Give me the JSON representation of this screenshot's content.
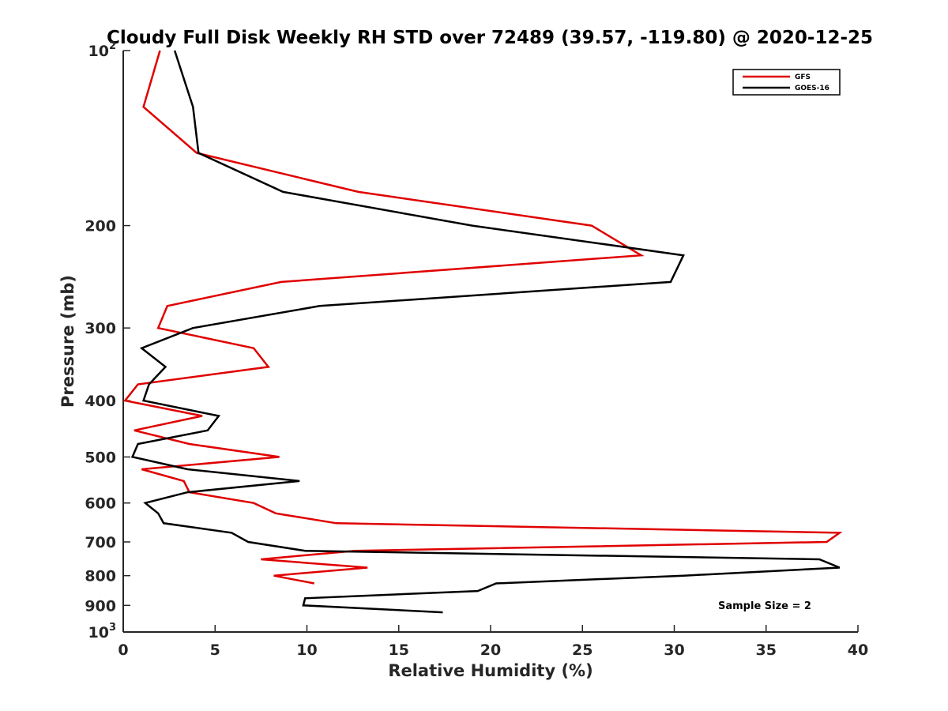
{
  "chart_data": {
    "type": "line",
    "title": "Cloudy Full Disk Weekly RH STD over 72489 (39.57, -119.80) @ 2020-12-25",
    "xlabel": "Relative Humidity (%)",
    "ylabel": "Pressure (mb)",
    "xlim": [
      0,
      40
    ],
    "ylim": [
      100,
      1000
    ],
    "y_scale": "log",
    "y_reversed": true,
    "x_ticks": [
      "0",
      "5",
      "10",
      "15",
      "20",
      "25",
      "30",
      "35",
      "40"
    ],
    "y_ticks": [
      {
        "value": 100,
        "base": "10",
        "sup": "2"
      },
      {
        "value": 200,
        "label": "200"
      },
      {
        "value": 300,
        "label": "300"
      },
      {
        "value": 400,
        "label": "400"
      },
      {
        "value": 500,
        "label": "500"
      },
      {
        "value": 600,
        "label": "600"
      },
      {
        "value": 700,
        "label": "700"
      },
      {
        "value": 800,
        "label": "800"
      },
      {
        "value": 900,
        "label": "900"
      },
      {
        "value": 1000,
        "base": "10",
        "sup": "3"
      }
    ],
    "grid": false,
    "legend_position": "top-right",
    "annotation": "Sample Size = 2",
    "series": [
      {
        "name": "GFS",
        "color": "#e00000",
        "points": [
          [
            2.0,
            100
          ],
          [
            1.1,
            125
          ],
          [
            4.0,
            150
          ],
          [
            12.8,
            175
          ],
          [
            25.5,
            200
          ],
          [
            28.2,
            225
          ],
          [
            8.6,
            250
          ],
          [
            2.4,
            275
          ],
          [
            1.9,
            300
          ],
          [
            7.1,
            325
          ],
          [
            7.9,
            350
          ],
          [
            0.8,
            375
          ],
          [
            0.1,
            400
          ],
          [
            4.3,
            425
          ],
          [
            0.6,
            450
          ],
          [
            3.6,
            475
          ],
          [
            8.5,
            500
          ],
          [
            1.0,
            525
          ],
          [
            3.3,
            550
          ],
          [
            3.6,
            575
          ],
          [
            7.1,
            600
          ],
          [
            8.3,
            625
          ],
          [
            11.6,
            650
          ],
          [
            39.0,
            675
          ],
          [
            38.3,
            700
          ],
          [
            12.6,
            725
          ],
          [
            7.5,
            750
          ],
          [
            13.3,
            775
          ],
          [
            8.2,
            800
          ],
          [
            10.4,
            825
          ]
        ]
      },
      {
        "name": "GOES-16",
        "color": "#000000",
        "points": [
          [
            2.8,
            100
          ],
          [
            3.8,
            125
          ],
          [
            4.1,
            150
          ],
          [
            8.7,
            175
          ],
          [
            19.0,
            200
          ],
          [
            30.5,
            225
          ],
          [
            29.8,
            250
          ],
          [
            10.7,
            275
          ],
          [
            3.8,
            300
          ],
          [
            1.0,
            325
          ],
          [
            2.3,
            350
          ],
          [
            1.4,
            375
          ],
          [
            1.1,
            400
          ],
          [
            5.2,
            425
          ],
          [
            4.6,
            450
          ],
          [
            0.8,
            475
          ],
          [
            0.5,
            500
          ],
          [
            3.5,
            525
          ],
          [
            9.6,
            550
          ],
          [
            3.5,
            575
          ],
          [
            1.2,
            600
          ],
          [
            1.9,
            625
          ],
          [
            2.2,
            650
          ],
          [
            5.9,
            675
          ],
          [
            6.8,
            700
          ],
          [
            9.9,
            725
          ],
          [
            37.9,
            750
          ],
          [
            39.0,
            775
          ],
          [
            30.5,
            800
          ],
          [
            20.3,
            825
          ],
          [
            19.3,
            850
          ],
          [
            9.9,
            875
          ],
          [
            9.8,
            900
          ],
          [
            17.4,
            925
          ]
        ]
      }
    ]
  }
}
